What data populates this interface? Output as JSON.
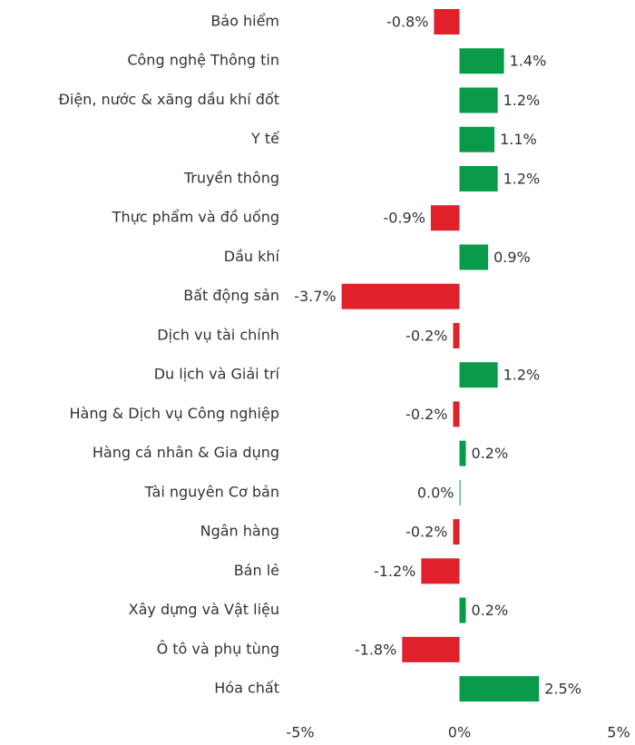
{
  "chart_data": {
    "type": "hbar",
    "categories": [
      "Bảo hiểm",
      "Công nghệ Thông tin",
      "Điện, nước & xăng dầu khí đốt",
      "Y tế",
      "Truyền thông",
      "Thực phẩm và đồ uống",
      "Dầu khí",
      "Bất động sản",
      "Dịch vụ tài chính",
      "Du lịch và Giải trí",
      "Hàng & Dịch vụ Công nghiệp",
      "Hàng cá nhân & Gia dụng",
      "Tài nguyên Cơ bản",
      "Ngân hàng",
      "Bán lẻ",
      "Xây dựng và Vật liệu",
      "Ô tô và phụ tùng",
      "Hóa chất"
    ],
    "values": [
      -0.8,
      1.4,
      1.2,
      1.1,
      1.2,
      -0.9,
      0.9,
      -3.7,
      -0.2,
      1.2,
      -0.2,
      0.2,
      0.0,
      -0.2,
      -1.2,
      0.2,
      -1.8,
      2.5
    ],
    "value_labels": [
      "-0.8%",
      "1.4%",
      "1.2%",
      "1.1%",
      "1.2%",
      "-0.9%",
      "0.9%",
      "-3.7%",
      "-0.2%",
      "1.2%",
      "-0.2%",
      "0.2%",
      "0.0%",
      "-0.2%",
      "-1.2%",
      "0.2%",
      "-1.8%",
      "2.5%"
    ],
    "positive_color": "#0a9b4a",
    "negative_color": "#e0202a",
    "xlim": [
      -5,
      5
    ],
    "xticks": [
      {
        "value": -5,
        "label": "-5%"
      },
      {
        "value": 0,
        "label": "0%"
      },
      {
        "value": 5,
        "label": "5%"
      }
    ],
    "grid": false
  }
}
